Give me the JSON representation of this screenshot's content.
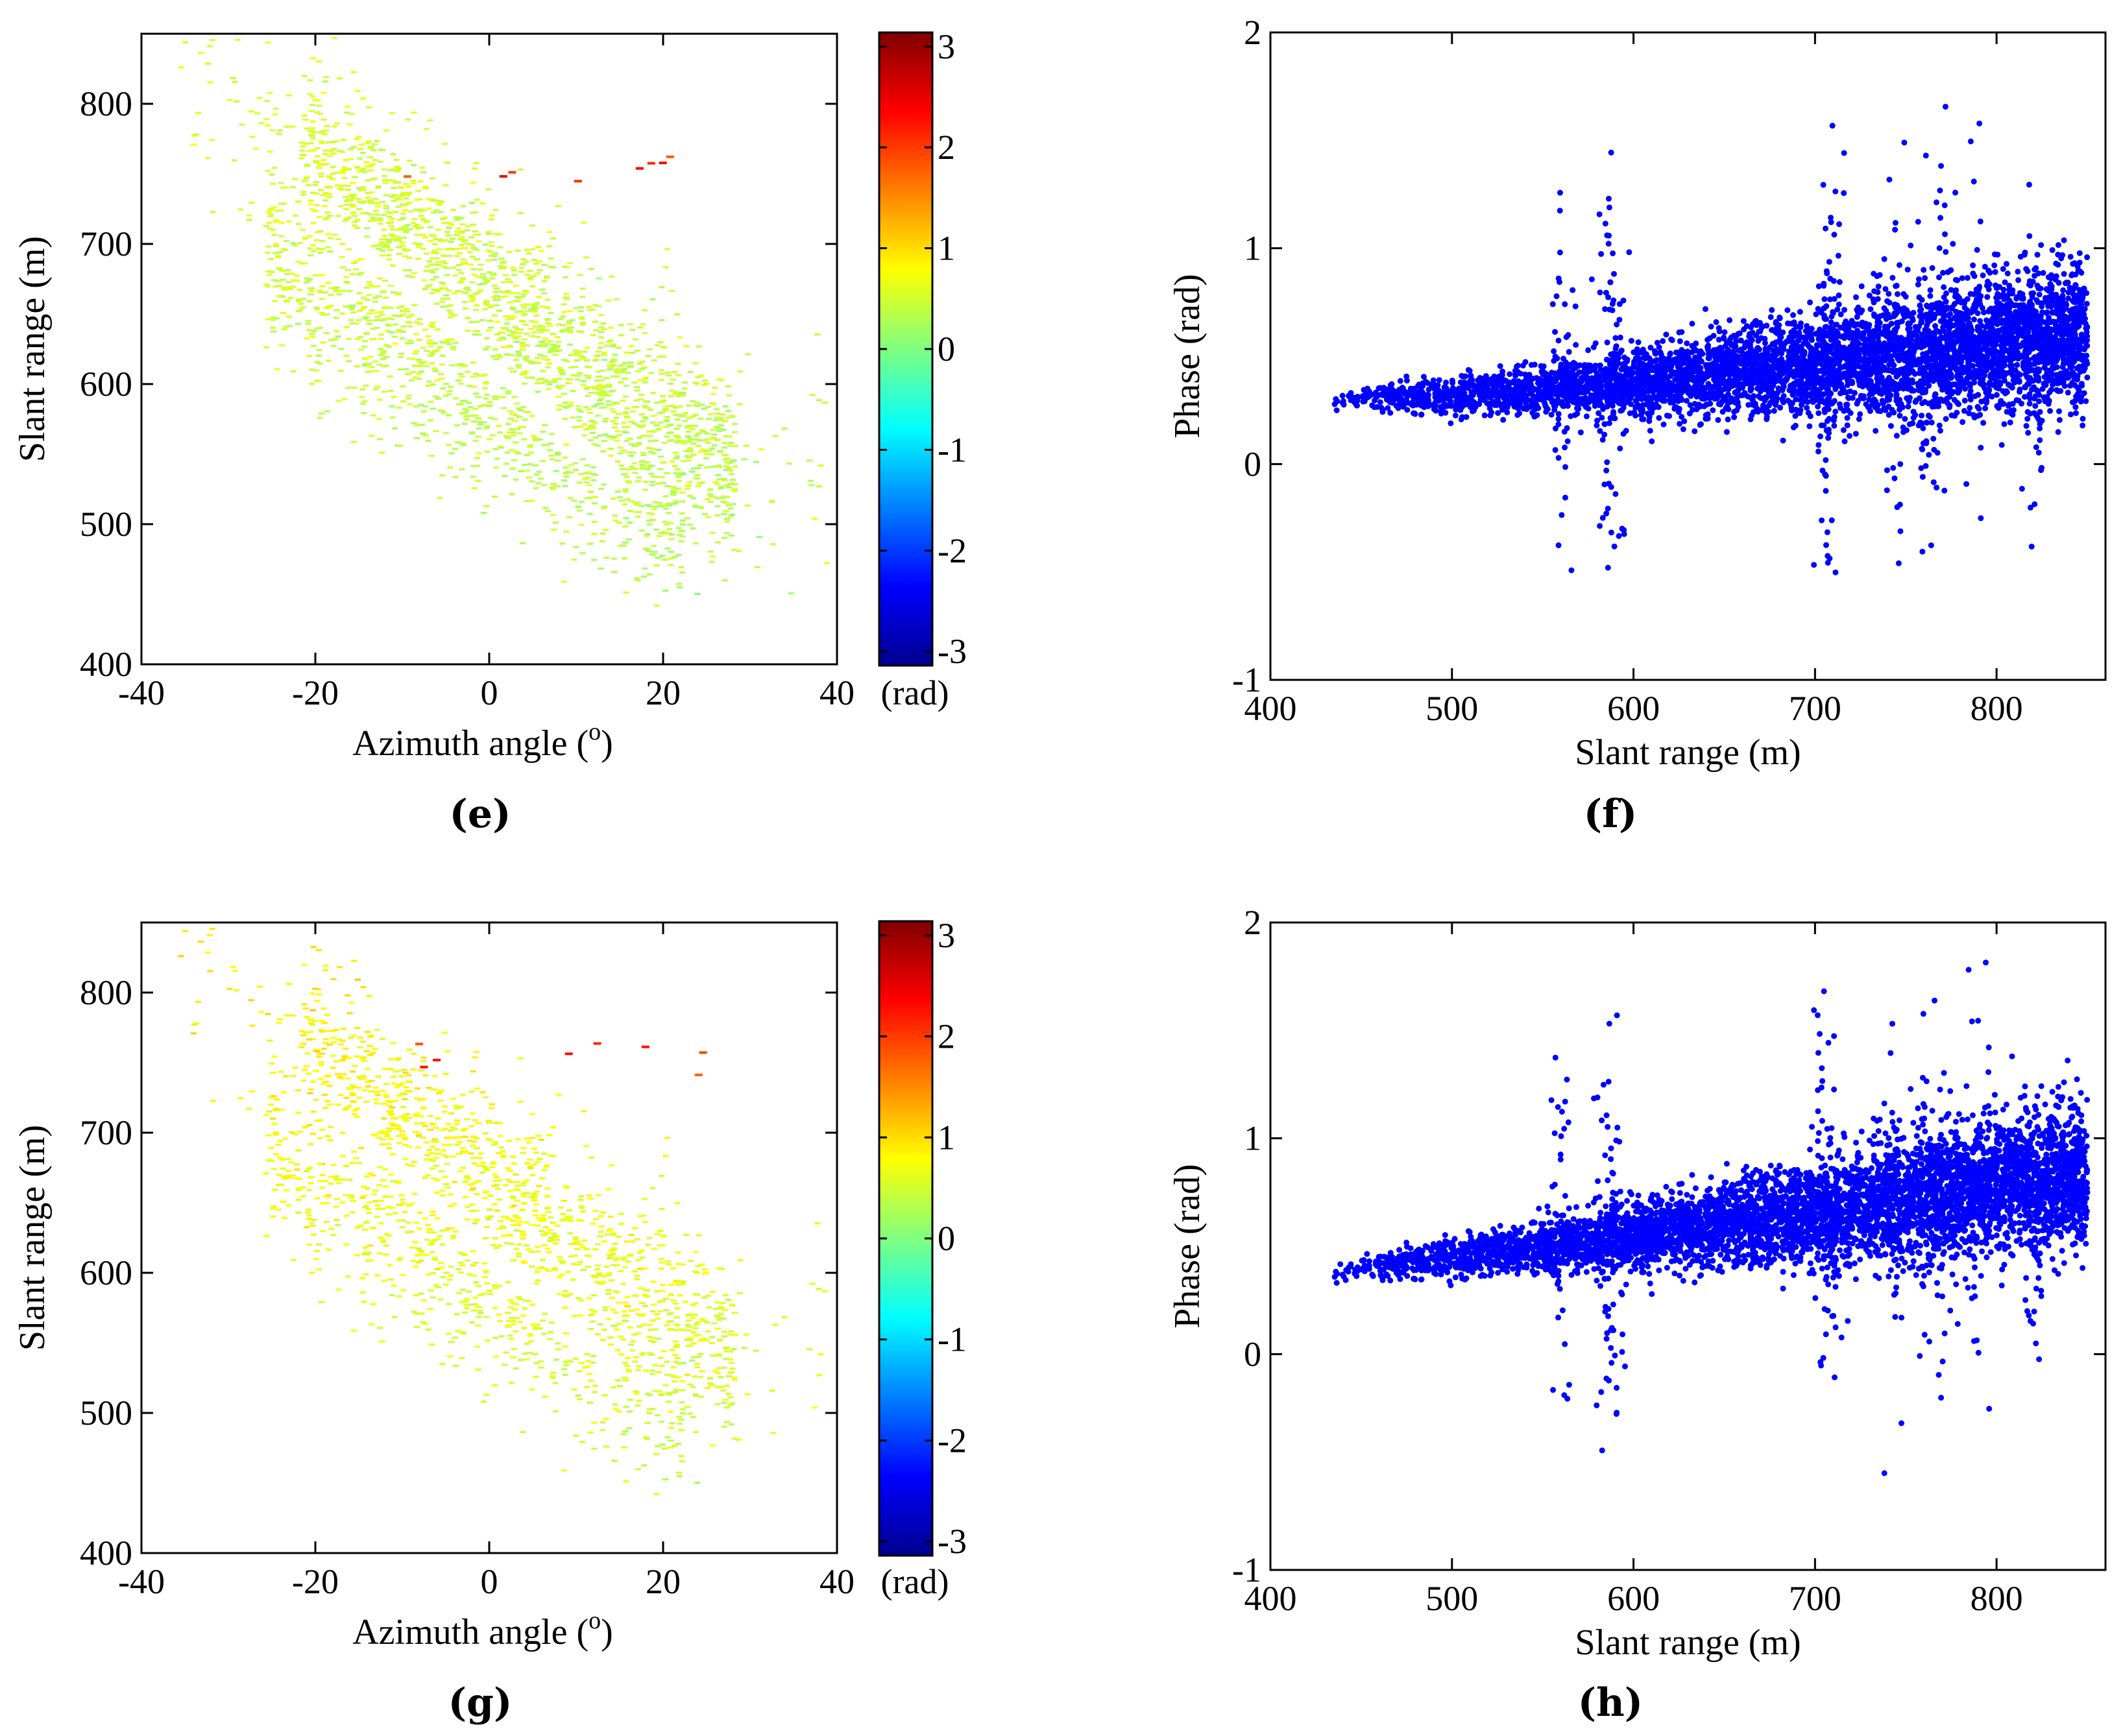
{
  "chart_data": [
    {
      "type": "heatmap",
      "panel": "e",
      "caption": "(e)",
      "xlabel": "Azimuth angle (",
      "xlabel_sup": "o",
      "xlabel_end": ")",
      "ylabel": "Slant range (m)",
      "xlim": [
        -40,
        40
      ],
      "ylim": [
        400,
        850
      ],
      "xticks": [
        "-40",
        "-20",
        "0",
        "20",
        "40"
      ],
      "yticks": [
        "400",
        "500",
        "600",
        "700",
        "800"
      ],
      "colorbar": {
        "label": "(rad)",
        "range": [
          -3.14,
          3.14
        ],
        "ticks": [
          "-3",
          "-2",
          "-1",
          "0",
          "1",
          "2",
          "3"
        ]
      },
      "phase_model": {
        "at_400m": 0.3,
        "at_850m": 0.6
      }
    },
    {
      "type": "scatter",
      "panel": "f",
      "caption": "(f)",
      "xlabel": "Slant range (m)",
      "ylabel": "Phase (rad)",
      "xlim": [
        400,
        860
      ],
      "ylim": [
        -1,
        2
      ],
      "xticks": [
        "400",
        "500",
        "600",
        "700",
        "800"
      ],
      "yticks": [
        "-1",
        "0",
        "1",
        "2"
      ],
      "trend": {
        "x": [
          435,
          500,
          600,
          700,
          800,
          850
        ],
        "y": [
          0.3,
          0.32,
          0.38,
          0.45,
          0.55,
          0.6
        ]
      },
      "color": "#0000ff"
    },
    {
      "type": "heatmap",
      "panel": "g",
      "caption": "(g)",
      "xlabel": "Azimuth angle (",
      "xlabel_sup": "o",
      "xlabel_end": ")",
      "ylabel": "Slant range (m)",
      "xlim": [
        -40,
        40
      ],
      "ylim": [
        400,
        850
      ],
      "xticks": [
        "-40",
        "-20",
        "0",
        "20",
        "40"
      ],
      "yticks": [
        "400",
        "500",
        "600",
        "700",
        "800"
      ],
      "colorbar": {
        "label": "(rad)",
        "range": [
          -3.14,
          3.14
        ],
        "ticks": [
          "-3",
          "-2",
          "-1",
          "0",
          "1",
          "2",
          "3"
        ]
      },
      "phase_model": {
        "at_400m": 0.4,
        "at_850m": 0.95
      }
    },
    {
      "type": "scatter",
      "panel": "h",
      "caption": "(h)",
      "xlabel": "Slant range (m)",
      "ylabel": "Phase (rad)",
      "xlim": [
        400,
        860
      ],
      "ylim": [
        -1,
        2
      ],
      "xticks": [
        "400",
        "500",
        "600",
        "700",
        "800"
      ],
      "yticks": [
        "-1",
        "0",
        "1",
        "2"
      ],
      "trend": {
        "x": [
          435,
          500,
          600,
          700,
          800,
          850
        ],
        "y": [
          0.38,
          0.45,
          0.55,
          0.65,
          0.78,
          0.82
        ]
      },
      "color": "#0000ff"
    }
  ]
}
